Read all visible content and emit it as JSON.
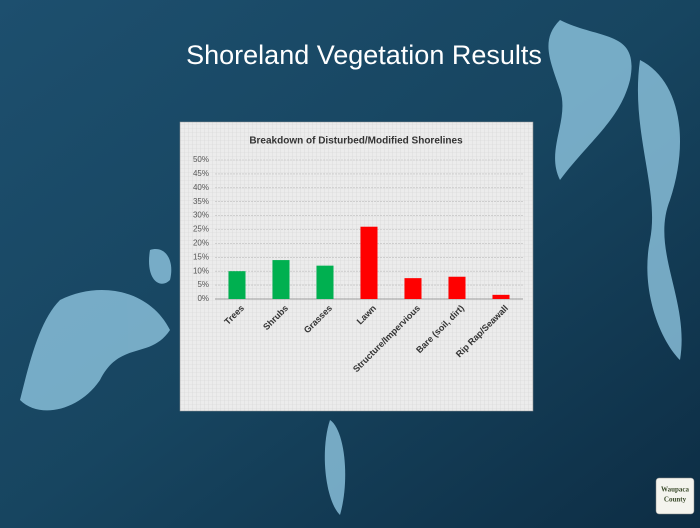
{
  "slide_title": "Shoreland Vegetation Results",
  "logo": [
    "Waupaca",
    "County"
  ],
  "chart_data": {
    "type": "bar",
    "title": "Breakdown of Disturbed/Modified Shorelines",
    "categories": [
      "Trees",
      "Shrubs",
      "Grasses",
      "Lawn",
      "Structure/Impervious",
      "Bare (soil, dirt)",
      "Rip Rap/Seawall"
    ],
    "values": [
      10,
      14,
      12,
      26,
      7.5,
      8,
      1.5
    ],
    "colors": [
      "#00b050",
      "#00b050",
      "#00b050",
      "#ff0000",
      "#ff0000",
      "#ff0000",
      "#ff0000"
    ],
    "ylim": [
      0,
      50
    ],
    "yticks": [
      {
        "value": 0,
        "label": "0%"
      },
      {
        "value": 5,
        "label": "5%"
      },
      {
        "value": 10,
        "label": "10%"
      },
      {
        "value": 15,
        "label": "15%"
      },
      {
        "value": 20,
        "label": "20%"
      },
      {
        "value": 25,
        "label": "25%"
      },
      {
        "value": 30,
        "label": "30%"
      },
      {
        "value": 35,
        "label": "35%"
      },
      {
        "value": 40,
        "label": "40%"
      },
      {
        "value": 45,
        "label": "45%"
      },
      {
        "value": 50,
        "label": "50%"
      }
    ],
    "grid": true
  }
}
